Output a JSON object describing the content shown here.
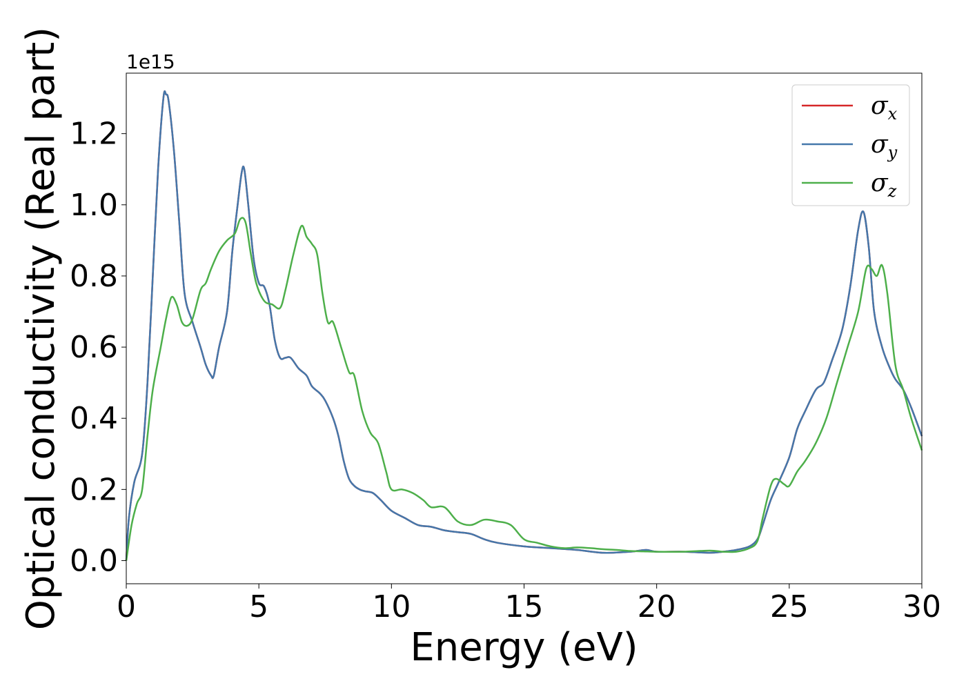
{
  "chart_data": {
    "type": "line",
    "title": "",
    "xlabel": "Energy (eV)",
    "ylabel": "Optical conductivity (Real part)",
    "y_offset_label": "1e15",
    "xlim": [
      0,
      30
    ],
    "ylim": [
      -0.065,
      1.37
    ],
    "x_ticks": [
      0,
      5,
      10,
      15,
      20,
      25,
      30
    ],
    "x_tick_labels": [
      "0",
      "5",
      "10",
      "15",
      "20",
      "25",
      "30"
    ],
    "y_ticks": [
      0.0,
      0.2,
      0.4,
      0.6,
      0.8,
      1.0,
      1.2
    ],
    "y_tick_labels": [
      "0.0",
      "0.2",
      "0.4",
      "0.6",
      "0.8",
      "1.0",
      "1.2"
    ],
    "grid": false,
    "legend_position": "top-right",
    "series": [
      {
        "name": "σx",
        "symbol": "σ",
        "subscript": "x",
        "color": "#d62728",
        "points": [
          [
            0,
            0
          ],
          [
            0.1,
            0.12
          ],
          [
            0.3,
            0.22
          ],
          [
            0.6,
            0.3
          ],
          [
            0.8,
            0.5
          ],
          [
            1.0,
            0.8
          ],
          [
            1.2,
            1.1
          ],
          [
            1.4,
            1.3
          ],
          [
            1.5,
            1.31
          ],
          [
            1.6,
            1.29
          ],
          [
            1.8,
            1.15
          ],
          [
            2.0,
            0.95
          ],
          [
            2.2,
            0.75
          ],
          [
            2.5,
            0.67
          ],
          [
            2.8,
            0.6
          ],
          [
            3.0,
            0.55
          ],
          [
            3.2,
            0.52
          ],
          [
            3.3,
            0.52
          ],
          [
            3.5,
            0.6
          ],
          [
            3.8,
            0.7
          ],
          [
            4.0,
            0.87
          ],
          [
            4.2,
            1.0
          ],
          [
            4.35,
            1.09
          ],
          [
            4.45,
            1.1
          ],
          [
            4.6,
            1.0
          ],
          [
            4.8,
            0.85
          ],
          [
            5.0,
            0.78
          ],
          [
            5.2,
            0.77
          ],
          [
            5.4,
            0.72
          ],
          [
            5.6,
            0.62
          ],
          [
            5.8,
            0.57
          ],
          [
            6.0,
            0.57
          ],
          [
            6.2,
            0.57
          ],
          [
            6.5,
            0.54
          ],
          [
            6.8,
            0.52
          ],
          [
            7.0,
            0.49
          ],
          [
            7.3,
            0.47
          ],
          [
            7.5,
            0.45
          ],
          [
            7.8,
            0.4
          ],
          [
            8.0,
            0.35
          ],
          [
            8.2,
            0.28
          ],
          [
            8.4,
            0.23
          ],
          [
            8.6,
            0.21
          ],
          [
            8.8,
            0.2
          ],
          [
            9.0,
            0.195
          ],
          [
            9.3,
            0.19
          ],
          [
            9.6,
            0.17
          ],
          [
            10.0,
            0.14
          ],
          [
            10.5,
            0.12
          ],
          [
            11.0,
            0.1
          ],
          [
            11.5,
            0.095
          ],
          [
            12.0,
            0.085
          ],
          [
            12.5,
            0.08
          ],
          [
            13.0,
            0.075
          ],
          [
            13.5,
            0.06
          ],
          [
            14.0,
            0.05
          ],
          [
            15.0,
            0.04
          ],
          [
            16.0,
            0.035
          ],
          [
            17.0,
            0.03
          ],
          [
            18.0,
            0.022
          ],
          [
            19.0,
            0.025
          ],
          [
            19.6,
            0.03
          ],
          [
            20.0,
            0.025
          ],
          [
            21.0,
            0.025
          ],
          [
            22.0,
            0.022
          ],
          [
            22.5,
            0.025
          ],
          [
            23.0,
            0.03
          ],
          [
            23.5,
            0.04
          ],
          [
            23.8,
            0.06
          ],
          [
            24.0,
            0.1
          ],
          [
            24.3,
            0.17
          ],
          [
            24.6,
            0.22
          ],
          [
            25.0,
            0.29
          ],
          [
            25.3,
            0.37
          ],
          [
            25.6,
            0.42
          ],
          [
            26.0,
            0.48
          ],
          [
            26.3,
            0.5
          ],
          [
            26.6,
            0.56
          ],
          [
            27.0,
            0.65
          ],
          [
            27.3,
            0.77
          ],
          [
            27.6,
            0.93
          ],
          [
            27.8,
            0.98
          ],
          [
            28.0,
            0.88
          ],
          [
            28.2,
            0.7
          ],
          [
            28.5,
            0.6
          ],
          [
            28.8,
            0.54
          ],
          [
            29.0,
            0.51
          ],
          [
            29.3,
            0.48
          ],
          [
            29.6,
            0.43
          ],
          [
            30.0,
            0.35
          ]
        ]
      },
      {
        "name": "σy",
        "symbol": "σ",
        "subscript": "y",
        "color": "#4477aa",
        "points": [
          [
            0,
            0
          ],
          [
            0.1,
            0.12
          ],
          [
            0.3,
            0.22
          ],
          [
            0.6,
            0.3
          ],
          [
            0.8,
            0.5
          ],
          [
            1.0,
            0.8
          ],
          [
            1.2,
            1.1
          ],
          [
            1.4,
            1.3
          ],
          [
            1.5,
            1.31
          ],
          [
            1.6,
            1.29
          ],
          [
            1.8,
            1.15
          ],
          [
            2.0,
            0.95
          ],
          [
            2.2,
            0.75
          ],
          [
            2.5,
            0.67
          ],
          [
            2.8,
            0.6
          ],
          [
            3.0,
            0.55
          ],
          [
            3.2,
            0.52
          ],
          [
            3.3,
            0.52
          ],
          [
            3.5,
            0.6
          ],
          [
            3.8,
            0.7
          ],
          [
            4.0,
            0.87
          ],
          [
            4.2,
            1.0
          ],
          [
            4.35,
            1.09
          ],
          [
            4.45,
            1.1
          ],
          [
            4.6,
            1.0
          ],
          [
            4.8,
            0.85
          ],
          [
            5.0,
            0.78
          ],
          [
            5.2,
            0.77
          ],
          [
            5.4,
            0.72
          ],
          [
            5.6,
            0.62
          ],
          [
            5.8,
            0.57
          ],
          [
            6.0,
            0.57
          ],
          [
            6.2,
            0.57
          ],
          [
            6.5,
            0.54
          ],
          [
            6.8,
            0.52
          ],
          [
            7.0,
            0.49
          ],
          [
            7.3,
            0.47
          ],
          [
            7.5,
            0.45
          ],
          [
            7.8,
            0.4
          ],
          [
            8.0,
            0.35
          ],
          [
            8.2,
            0.28
          ],
          [
            8.4,
            0.23
          ],
          [
            8.6,
            0.21
          ],
          [
            8.8,
            0.2
          ],
          [
            9.0,
            0.195
          ],
          [
            9.3,
            0.19
          ],
          [
            9.6,
            0.17
          ],
          [
            10.0,
            0.14
          ],
          [
            10.5,
            0.12
          ],
          [
            11.0,
            0.1
          ],
          [
            11.5,
            0.095
          ],
          [
            12.0,
            0.085
          ],
          [
            12.5,
            0.08
          ],
          [
            13.0,
            0.075
          ],
          [
            13.5,
            0.06
          ],
          [
            14.0,
            0.05
          ],
          [
            15.0,
            0.04
          ],
          [
            16.0,
            0.035
          ],
          [
            17.0,
            0.03
          ],
          [
            18.0,
            0.022
          ],
          [
            19.0,
            0.025
          ],
          [
            19.6,
            0.03
          ],
          [
            20.0,
            0.025
          ],
          [
            21.0,
            0.025
          ],
          [
            22.0,
            0.022
          ],
          [
            22.5,
            0.025
          ],
          [
            23.0,
            0.03
          ],
          [
            23.5,
            0.04
          ],
          [
            23.8,
            0.06
          ],
          [
            24.0,
            0.1
          ],
          [
            24.3,
            0.17
          ],
          [
            24.6,
            0.22
          ],
          [
            25.0,
            0.29
          ],
          [
            25.3,
            0.37
          ],
          [
            25.6,
            0.42
          ],
          [
            26.0,
            0.48
          ],
          [
            26.3,
            0.5
          ],
          [
            26.6,
            0.56
          ],
          [
            27.0,
            0.65
          ],
          [
            27.3,
            0.77
          ],
          [
            27.6,
            0.93
          ],
          [
            27.8,
            0.98
          ],
          [
            28.0,
            0.88
          ],
          [
            28.2,
            0.7
          ],
          [
            28.5,
            0.6
          ],
          [
            28.8,
            0.54
          ],
          [
            29.0,
            0.51
          ],
          [
            29.3,
            0.48
          ],
          [
            29.6,
            0.43
          ],
          [
            30.0,
            0.35
          ]
        ]
      },
      {
        "name": "σz",
        "symbol": "σ",
        "subscript": "z",
        "color": "#4daf4a",
        "points": [
          [
            0,
            0
          ],
          [
            0.2,
            0.1
          ],
          [
            0.4,
            0.16
          ],
          [
            0.6,
            0.2
          ],
          [
            0.8,
            0.35
          ],
          [
            1.0,
            0.48
          ],
          [
            1.3,
            0.6
          ],
          [
            1.5,
            0.68
          ],
          [
            1.7,
            0.74
          ],
          [
            1.9,
            0.72
          ],
          [
            2.1,
            0.67
          ],
          [
            2.3,
            0.66
          ],
          [
            2.5,
            0.68
          ],
          [
            2.8,
            0.76
          ],
          [
            3.0,
            0.78
          ],
          [
            3.2,
            0.82
          ],
          [
            3.5,
            0.87
          ],
          [
            3.8,
            0.9
          ],
          [
            4.1,
            0.92
          ],
          [
            4.3,
            0.96
          ],
          [
            4.5,
            0.95
          ],
          [
            4.7,
            0.86
          ],
          [
            4.9,
            0.78
          ],
          [
            5.2,
            0.73
          ],
          [
            5.5,
            0.72
          ],
          [
            5.8,
            0.71
          ],
          [
            6.0,
            0.76
          ],
          [
            6.3,
            0.86
          ],
          [
            6.6,
            0.94
          ],
          [
            6.8,
            0.91
          ],
          [
            7.0,
            0.89
          ],
          [
            7.2,
            0.86
          ],
          [
            7.4,
            0.75
          ],
          [
            7.6,
            0.67
          ],
          [
            7.8,
            0.67
          ],
          [
            8.1,
            0.6
          ],
          [
            8.4,
            0.53
          ],
          [
            8.6,
            0.52
          ],
          [
            8.9,
            0.42
          ],
          [
            9.2,
            0.36
          ],
          [
            9.5,
            0.33
          ],
          [
            9.8,
            0.25
          ],
          [
            10.0,
            0.2
          ],
          [
            10.4,
            0.2
          ],
          [
            10.8,
            0.19
          ],
          [
            11.2,
            0.17
          ],
          [
            11.5,
            0.15
          ],
          [
            12.0,
            0.15
          ],
          [
            12.5,
            0.11
          ],
          [
            13.0,
            0.1
          ],
          [
            13.5,
            0.115
          ],
          [
            14.0,
            0.11
          ],
          [
            14.5,
            0.1
          ],
          [
            15.0,
            0.06
          ],
          [
            15.5,
            0.05
          ],
          [
            16.0,
            0.04
          ],
          [
            16.5,
            0.035
          ],
          [
            17.0,
            0.037
          ],
          [
            17.5,
            0.035
          ],
          [
            18.0,
            0.032
          ],
          [
            18.5,
            0.03
          ],
          [
            19.0,
            0.027
          ],
          [
            19.5,
            0.026
          ],
          [
            20.0,
            0.025
          ],
          [
            21.0,
            0.025
          ],
          [
            22.0,
            0.028
          ],
          [
            22.5,
            0.025
          ],
          [
            23.0,
            0.025
          ],
          [
            23.5,
            0.035
          ],
          [
            23.8,
            0.055
          ],
          [
            24.0,
            0.12
          ],
          [
            24.3,
            0.21
          ],
          [
            24.5,
            0.23
          ],
          [
            24.8,
            0.215
          ],
          [
            25.0,
            0.21
          ],
          [
            25.3,
            0.25
          ],
          [
            25.6,
            0.28
          ],
          [
            26.0,
            0.33
          ],
          [
            26.4,
            0.4
          ],
          [
            26.8,
            0.5
          ],
          [
            27.2,
            0.6
          ],
          [
            27.6,
            0.7
          ],
          [
            27.9,
            0.82
          ],
          [
            28.1,
            0.82
          ],
          [
            28.3,
            0.8
          ],
          [
            28.5,
            0.83
          ],
          [
            28.7,
            0.75
          ],
          [
            29.0,
            0.55
          ],
          [
            29.3,
            0.48
          ],
          [
            29.6,
            0.4
          ],
          [
            30.0,
            0.31
          ]
        ]
      }
    ]
  }
}
